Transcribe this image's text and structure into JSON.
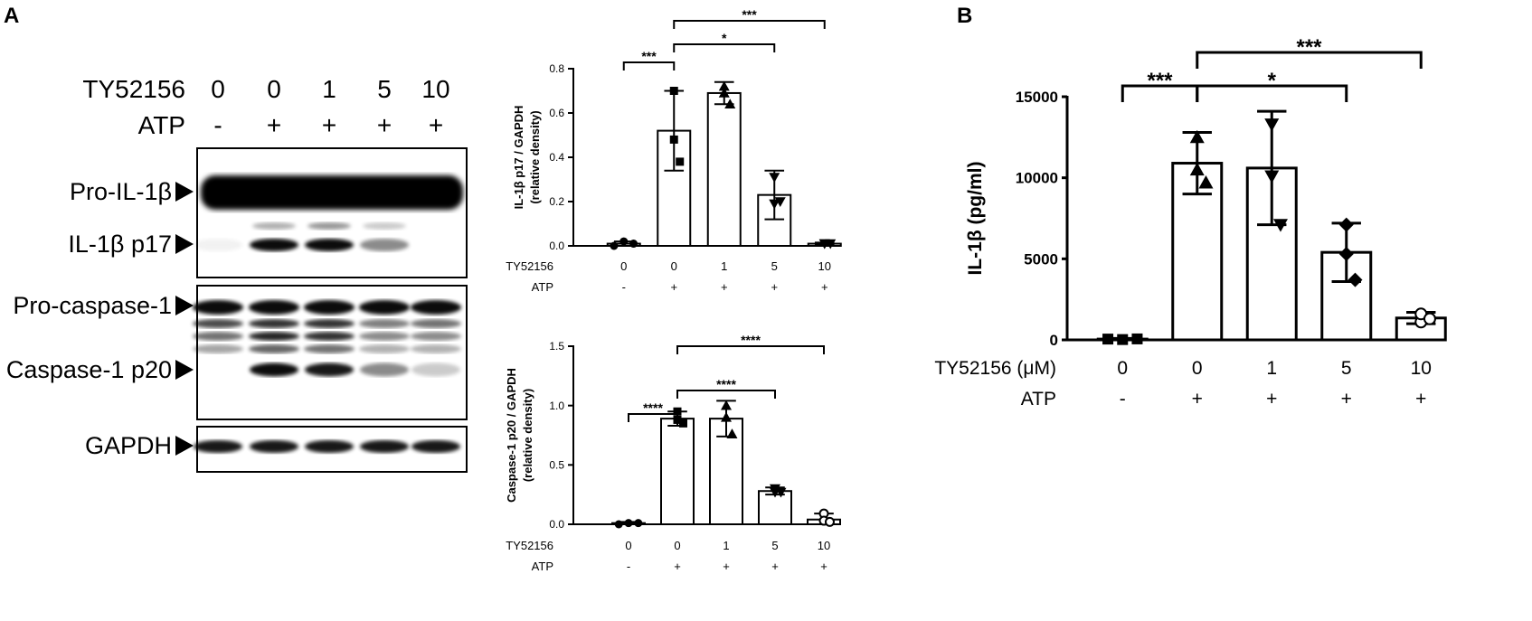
{
  "panels": {
    "a": "A",
    "b": "B"
  },
  "blot": {
    "header_rows": [
      {
        "label": "TY52156",
        "values": [
          "0",
          "0",
          "1",
          "5",
          "10"
        ]
      },
      {
        "label": "ATP",
        "values": [
          "-",
          "+",
          "+",
          "+",
          "+"
        ]
      }
    ],
    "band_labels": [
      "Pro-IL-1β",
      "IL-1β p17",
      "Pro-caspase-1",
      "Caspase-1 p20",
      "GAPDH"
    ]
  },
  "chart_data": [
    {
      "id": "p17",
      "type": "bar",
      "categories": [
        "0",
        "0",
        "1",
        "5",
        "10"
      ],
      "x_rows": [
        {
          "label": "TY52156",
          "values": [
            "0",
            "0",
            "1",
            "5",
            "10"
          ]
        },
        {
          "label": "ATP",
          "values": [
            "-",
            "+",
            "+",
            "+",
            "+"
          ]
        }
      ],
      "values": [
        0.01,
        0.52,
        0.69,
        0.23,
        0.01
      ],
      "errors": [
        0.01,
        0.18,
        0.05,
        0.11,
        0.005
      ],
      "points": [
        [
          0.0,
          0.02,
          0.01
        ],
        [
          0.7,
          0.48,
          0.38
        ],
        [
          0.72,
          0.69,
          0.64
        ],
        [
          0.31,
          0.19,
          0.2
        ],
        [
          0.01,
          0.01,
          0.01
        ]
      ],
      "marker": [
        "circle",
        "square",
        "triangle-up",
        "triangle-down",
        "triangle-down"
      ],
      "ylabel": "IL-1β p17 / GAPDH",
      "ylabel2": "(relative density)",
      "ylim": [
        0,
        0.8
      ],
      "yticks": [
        0.0,
        0.2,
        0.4,
        0.6,
        0.8
      ],
      "ytick_labels": [
        "0.0",
        "0.2",
        "0.4",
        "0.6",
        "0.8"
      ],
      "significance": [
        {
          "from": 0,
          "to": 1,
          "label": "***"
        },
        {
          "from": 1,
          "to": 3,
          "label": "*"
        },
        {
          "from": 1,
          "to": 4,
          "label": "***"
        }
      ]
    },
    {
      "id": "p20",
      "type": "bar",
      "categories": [
        "0",
        "0",
        "1",
        "5",
        "10"
      ],
      "x_rows": [
        {
          "label": "TY52156",
          "values": [
            "0",
            "0",
            "1",
            "5",
            "10"
          ]
        },
        {
          "label": "ATP",
          "values": [
            "-",
            "+",
            "+",
            "+",
            "+"
          ]
        }
      ],
      "values": [
        0.01,
        0.89,
        0.89,
        0.28,
        0.04
      ],
      "errors": [
        0.01,
        0.06,
        0.15,
        0.03,
        0.05
      ],
      "points": [
        [
          0.0,
          0.01,
          0.01
        ],
        [
          0.95,
          0.88,
          0.85
        ],
        [
          1.0,
          0.9,
          0.76
        ],
        [
          0.3,
          0.27,
          0.27
        ],
        [
          0.09,
          0.03,
          0.02
        ]
      ],
      "marker": [
        "circle",
        "square",
        "triangle-up",
        "triangle-down",
        "circle-open"
      ],
      "ylabel": "Caspase-1 p20 / GAPDH",
      "ylabel2": "(relative density)",
      "ylim": [
        0,
        1.5
      ],
      "yticks": [
        0.0,
        0.5,
        1.0,
        1.5
      ],
      "ytick_labels": [
        "0.0",
        "0.5",
        "1.0",
        "1.5"
      ],
      "significance": [
        {
          "from": 0,
          "to": 1,
          "label": "****"
        },
        {
          "from": 1,
          "to": 3,
          "label": "****"
        },
        {
          "from": 1,
          "to": 4,
          "label": "****"
        }
      ]
    },
    {
      "id": "il1b",
      "type": "bar",
      "categories": [
        "0",
        "0",
        "1",
        "5",
        "10"
      ],
      "x_rows": [
        {
          "label": "TY52156 (μM)",
          "values": [
            "0",
            "0",
            "1",
            "5",
            "10"
          ]
        },
        {
          "label": "ATP",
          "values": [
            "-",
            "+",
            "+",
            "+",
            "+"
          ]
        }
      ],
      "values": [
        50,
        10900,
        10600,
        5400,
        1350
      ],
      "errors": [
        40,
        1900,
        3500,
        1800,
        350
      ],
      "points": [
        [
          50,
          20,
          60
        ],
        [
          12500,
          10500,
          9700
        ],
        [
          13300,
          10100,
          7100
        ],
        [
          7100,
          5300,
          3700
        ],
        [
          1100,
          1600,
          1300
        ]
      ],
      "marker": [
        "square",
        "triangle-up",
        "triangle-down",
        "diamond",
        "circle-open"
      ],
      "ylabel": "IL-1β (pg/ml)",
      "ylim": [
        0,
        15000
      ],
      "yticks": [
        0,
        5000,
        10000,
        15000
      ],
      "ytick_labels": [
        "0",
        "5000",
        "10000",
        "15000"
      ],
      "significance": [
        {
          "from": 0,
          "to": 1,
          "label": "***"
        },
        {
          "from": 1,
          "to": 3,
          "label": "*"
        },
        {
          "from": 1,
          "to": 4,
          "label": "***"
        }
      ]
    }
  ]
}
